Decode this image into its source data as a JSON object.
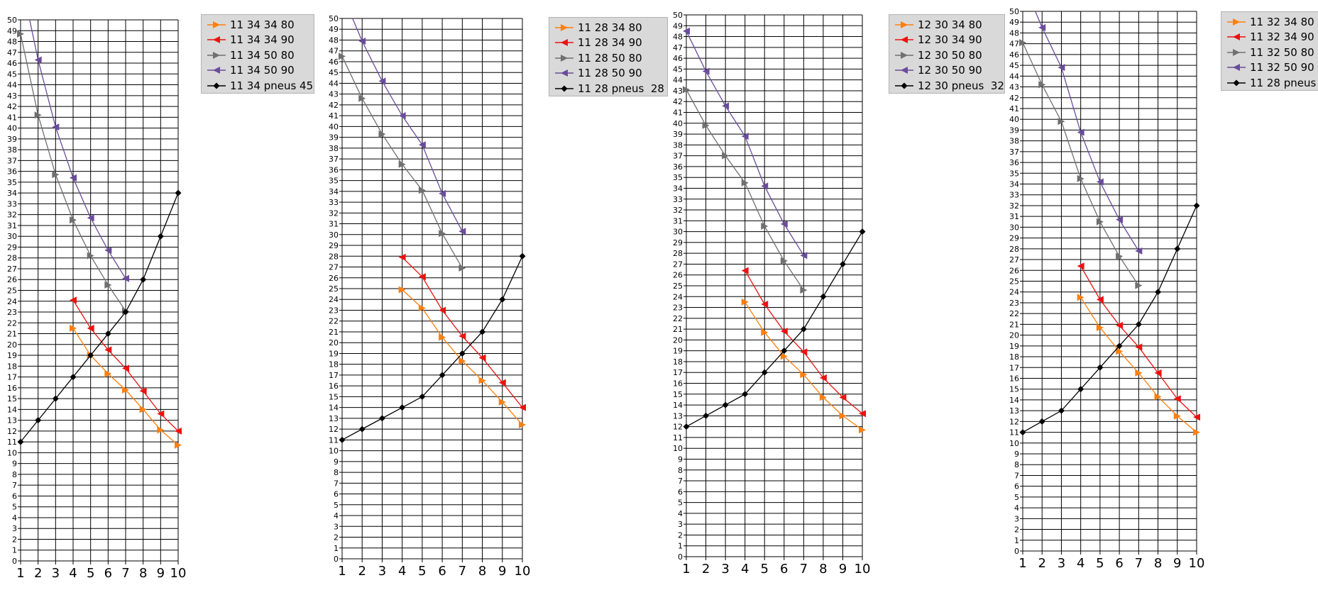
{
  "chart_data": [
    {
      "type": "line",
      "x": [
        1,
        2,
        3,
        4,
        5,
        6,
        7,
        8,
        9,
        10
      ],
      "ylim": [
        0,
        50
      ],
      "xlim": [
        1,
        10
      ],
      "grid": true,
      "legend_position": "top-right",
      "series": [
        {
          "name": "11 34 34 80",
          "color": "#ff7f0e",
          "marker": "triangle-right",
          "values": [
            null,
            null,
            null,
            21.5,
            19.0,
            17.3,
            15.8,
            14.0,
            12.1,
            10.7
          ]
        },
        {
          "name": "11 34 34 90",
          "color": "#ee1111",
          "marker": "triangle-left",
          "values": [
            null,
            null,
            null,
            24.1,
            21.5,
            19.5,
            17.8,
            15.7,
            13.6,
            12.0
          ]
        },
        {
          "name": "11 34 50 80",
          "color": "#707070",
          "marker": "triangle-right",
          "values": [
            48.7,
            41.2,
            35.7,
            31.5,
            28.2,
            25.5,
            23.1,
            null,
            null,
            null
          ]
        },
        {
          "name": "11 34 50 90",
          "color": "#6a4c9c",
          "marker": "triangle-left",
          "values": [
            54.0,
            46.3,
            40.1,
            35.4,
            31.7,
            28.7,
            26.1,
            null,
            null,
            null
          ]
        },
        {
          "name": "11 34 pneus 45",
          "color": "#000000",
          "marker": "diamond",
          "values": [
            11,
            13,
            15,
            17,
            19,
            21,
            23,
            26,
            30,
            34
          ]
        }
      ]
    },
    {
      "type": "line",
      "x": [
        1,
        2,
        3,
        4,
        5,
        6,
        7,
        8,
        9,
        10
      ],
      "ylim": [
        0,
        50
      ],
      "xlim": [
        1,
        10
      ],
      "grid": true,
      "legend_position": "top-right",
      "series": [
        {
          "name": "11 28 34 80",
          "color": "#ff7f0e",
          "marker": "triangle-right",
          "values": [
            null,
            null,
            null,
            24.9,
            23.2,
            20.5,
            18.3,
            16.5,
            14.5,
            12.4
          ]
        },
        {
          "name": "11 28 34 90",
          "color": "#ee1111",
          "marker": "triangle-left",
          "values": [
            null,
            null,
            null,
            27.9,
            26.1,
            23.0,
            20.6,
            18.6,
            16.3,
            14.0
          ]
        },
        {
          "name": "11 28 50 80",
          "color": "#707070",
          "marker": "triangle-right",
          "values": [
            46.5,
            42.6,
            39.3,
            36.5,
            34.1,
            30.1,
            26.9,
            null,
            null,
            null
          ]
        },
        {
          "name": "11 28 50 90",
          "color": "#6a4c9c",
          "marker": "triangle-left",
          "values": [
            52.3,
            47.9,
            44.2,
            41.0,
            38.3,
            33.8,
            30.3,
            null,
            null,
            null
          ]
        },
        {
          "name": "11 28 pneus  28",
          "color": "#000000",
          "marker": "diamond",
          "values": [
            11,
            12,
            13,
            14,
            15,
            17,
            19,
            21,
            24,
            28
          ]
        }
      ]
    },
    {
      "type": "line",
      "x": [
        1,
        2,
        3,
        4,
        5,
        6,
        7,
        8,
        9,
        10
      ],
      "ylim": [
        0,
        50
      ],
      "xlim": [
        1,
        10
      ],
      "grid": true,
      "legend_position": "top-right",
      "series": [
        {
          "name": "12 30 34 80",
          "color": "#ff7f0e",
          "marker": "triangle-right",
          "values": [
            null,
            null,
            null,
            23.5,
            20.7,
            18.5,
            16.8,
            14.7,
            13.0,
            11.7
          ]
        },
        {
          "name": "12 30 34 90",
          "color": "#ee1111",
          "marker": "triangle-left",
          "values": [
            null,
            null,
            null,
            26.4,
            23.3,
            20.8,
            18.9,
            16.5,
            14.7,
            13.2
          ]
        },
        {
          "name": "12 30 50 80",
          "color": "#707070",
          "marker": "triangle-right",
          "values": [
            43.1,
            39.8,
            37.0,
            34.5,
            30.5,
            27.3,
            24.6,
            null,
            null,
            null
          ]
        },
        {
          "name": "12 30 50 90",
          "color": "#6a4c9c",
          "marker": "triangle-left",
          "values": [
            48.5,
            44.8,
            41.6,
            38.8,
            34.2,
            30.7,
            27.8,
            null,
            null,
            null
          ]
        },
        {
          "name": "12 30 pneus  32",
          "color": "#000000",
          "marker": "diamond",
          "values": [
            12,
            13,
            14,
            15,
            17,
            19,
            21,
            24,
            27,
            30
          ]
        }
      ]
    },
    {
      "type": "line",
      "x": [
        1,
        2,
        3,
        4,
        5,
        6,
        7,
        8,
        9,
        10
      ],
      "ylim": [
        0,
        50
      ],
      "xlim": [
        1,
        10
      ],
      "grid": true,
      "legend_position": "top-right",
      "series": [
        {
          "name": "11 32 34 80",
          "color": "#ff7f0e",
          "marker": "triangle-right",
          "values": [
            null,
            null,
            null,
            23.5,
            20.7,
            18.5,
            16.5,
            14.3,
            12.5,
            11.0
          ]
        },
        {
          "name": "11 32 34 90",
          "color": "#ee1111",
          "marker": "triangle-left",
          "values": [
            null,
            null,
            null,
            26.4,
            23.3,
            20.9,
            18.9,
            16.5,
            14.1,
            12.4
          ]
        },
        {
          "name": "11 32 50 80",
          "color": "#707070",
          "marker": "triangle-right",
          "values": [
            47.1,
            43.2,
            39.8,
            34.5,
            30.5,
            27.3,
            24.6,
            null,
            null,
            null
          ]
        },
        {
          "name": "11 32 50 90",
          "color": "#6a4c9c",
          "marker": "triangle-left",
          "values": [
            52.8,
            48.5,
            44.8,
            38.8,
            34.2,
            30.7,
            27.8,
            null,
            null,
            null
          ]
        },
        {
          "name": "11 28 pneus",
          "color": "#000000",
          "marker": "diamond",
          "values": [
            11,
            12,
            13,
            15,
            17,
            19,
            21,
            24,
            28,
            32
          ]
        }
      ]
    }
  ]
}
